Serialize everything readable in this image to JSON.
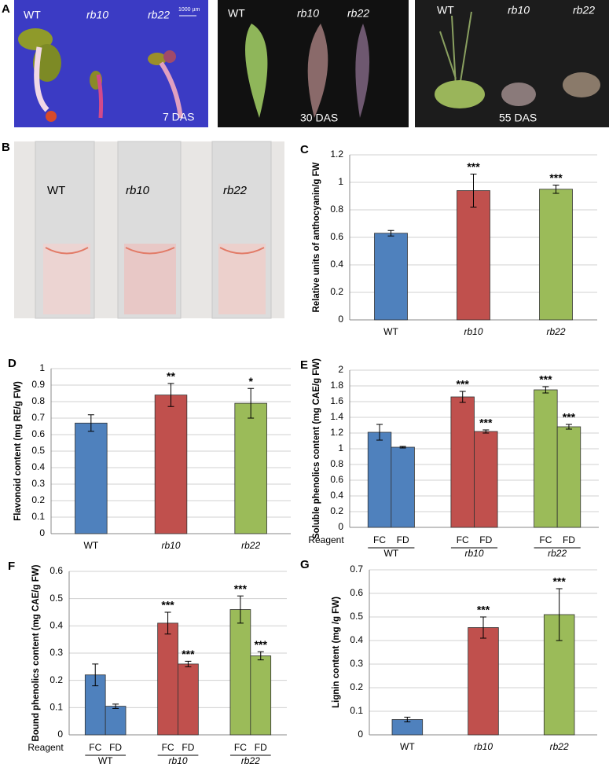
{
  "photos": [
    {
      "panel": "A",
      "labels": [
        "WT",
        "rb10",
        "rb22"
      ],
      "caption": "7 DAS",
      "scale": "1000 µm"
    },
    {
      "labels": [
        "WT",
        "rb10",
        "rb22"
      ],
      "caption": "30 DAS"
    },
    {
      "labels": [
        "WT",
        "rb10",
        "rb22"
      ],
      "caption": "55 DAS"
    },
    {
      "panel": "B",
      "labels": [
        "WT",
        "rb10",
        "rb22"
      ]
    }
  ],
  "chart_data": [
    {
      "panel": "C",
      "type": "bar",
      "ylabel": "Relative units of anthocyanin/g FW",
      "categories": [
        "WT",
        "rb10",
        "rb22"
      ],
      "values": [
        0.63,
        0.94,
        0.95
      ],
      "errors": [
        0.02,
        0.12,
        0.03
      ],
      "annotations": [
        null,
        "***",
        "***"
      ],
      "colors": [
        "#4f81bd",
        "#c0504d",
        "#9bbb59"
      ],
      "ylim": [
        0,
        1.2
      ],
      "yticks": [
        0,
        0.2,
        0.4,
        0.6,
        0.8,
        1,
        1.2
      ],
      "grid": true
    },
    {
      "panel": "D",
      "type": "bar",
      "ylabel": "Flavonoid content (mg RE/g FW)",
      "categories": [
        "WT",
        "rb10",
        "rb22"
      ],
      "values": [
        0.67,
        0.84,
        0.79
      ],
      "errors": [
        0.05,
        0.07,
        0.09
      ],
      "annotations": [
        null,
        "**",
        "*"
      ],
      "colors": [
        "#4f81bd",
        "#c0504d",
        "#9bbb59"
      ],
      "ylim": [
        0,
        1
      ],
      "yticks": [
        0,
        0.1,
        0.2,
        0.3,
        0.4,
        0.5,
        0.6,
        0.7,
        0.8,
        0.9,
        1
      ],
      "grid": true
    },
    {
      "panel": "E",
      "type": "grouped",
      "ylabel": "Soluble phenolics content (mg CAE/g FW)",
      "group_label": "Reagent",
      "categories": [
        "WT",
        "rb10",
        "rb22"
      ],
      "series": [
        {
          "name": "FC",
          "values": [
            1.21,
            1.66,
            1.75
          ],
          "errors": [
            0.1,
            0.07,
            0.04
          ],
          "annotations": [
            null,
            "***",
            "***"
          ]
        },
        {
          "name": "FD",
          "values": [
            1.02,
            1.22,
            1.28
          ],
          "errors": [
            0.01,
            0.02,
            0.03
          ],
          "annotations": [
            null,
            "***",
            "***"
          ]
        }
      ],
      "colors": [
        "#4f81bd",
        "#c0504d",
        "#9bbb59"
      ],
      "ylim": [
        0,
        2
      ],
      "yticks": [
        0,
        0.2,
        0.4,
        0.6,
        0.8,
        1,
        1.2,
        1.4,
        1.6,
        1.8,
        2
      ],
      "grid": true
    },
    {
      "panel": "F",
      "type": "grouped",
      "ylabel": "Bound phenolics content (mg CAE/g FW)",
      "group_label": "Reagent",
      "categories": [
        "WT",
        "rb10",
        "rb22"
      ],
      "series": [
        {
          "name": "FC",
          "values": [
            0.22,
            0.41,
            0.46
          ],
          "errors": [
            0.04,
            0.04,
            0.05
          ],
          "annotations": [
            null,
            "***",
            "***"
          ]
        },
        {
          "name": "FD",
          "values": [
            0.105,
            0.26,
            0.29
          ],
          "errors": [
            0.008,
            0.01,
            0.015
          ],
          "annotations": [
            null,
            "***",
            "***"
          ]
        }
      ],
      "colors": [
        "#4f81bd",
        "#c0504d",
        "#9bbb59"
      ],
      "ylim": [
        0,
        0.6
      ],
      "yticks": [
        0,
        0.1,
        0.2,
        0.3,
        0.4,
        0.5,
        0.6
      ],
      "grid": true
    },
    {
      "panel": "G",
      "type": "bar",
      "ylabel": "Lignin content (mg /g FW)",
      "categories": [
        "WT",
        "rb10",
        "rb22"
      ],
      "values": [
        0.065,
        0.455,
        0.51
      ],
      "errors": [
        0.01,
        0.045,
        0.11
      ],
      "annotations": [
        null,
        "***",
        "***"
      ],
      "colors": [
        "#4f81bd",
        "#c0504d",
        "#9bbb59"
      ],
      "ylim": [
        0,
        0.7
      ],
      "yticks": [
        0,
        0.1,
        0.2,
        0.3,
        0.4,
        0.5,
        0.6,
        0.7
      ],
      "grid": true
    }
  ]
}
